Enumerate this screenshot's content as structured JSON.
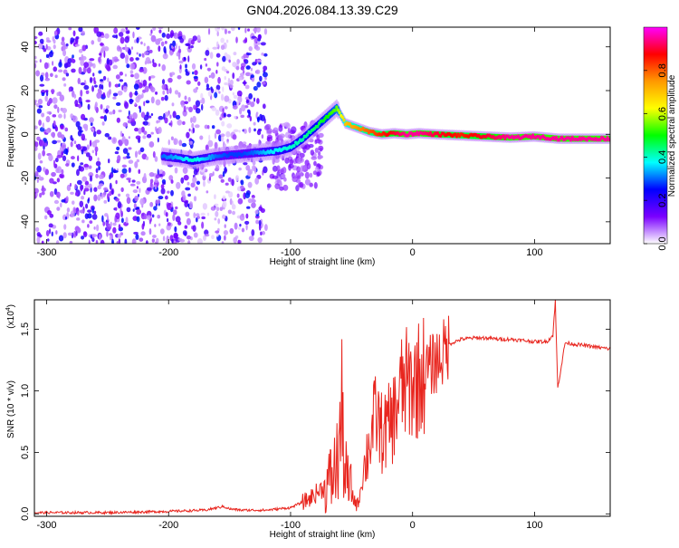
{
  "title": "GN04.2026.084.13.39.C29",
  "chart_data": [
    {
      "type": "heatmap",
      "xlabel": "Height of straight line (km)",
      "ylabel": "Frequency (Hz)",
      "xlim": [
        -310,
        162
      ],
      "ylim": [
        -50,
        49
      ],
      "xticks": [
        -300,
        -200,
        -100,
        0,
        100
      ],
      "yticks": [
        -40,
        -20,
        0,
        20,
        40
      ],
      "colorbar": {
        "label": "Normalized spectral amplitude",
        "range": [
          0.0,
          1.0
        ],
        "ticks": [
          "0.0",
          "0.2",
          "0.4",
          "0.6",
          "0.8"
        ],
        "colors": [
          "#ffffff",
          "#7a00ff",
          "#0000ff",
          "#00ffff",
          "#00ff00",
          "#ffff00",
          "#ff9900",
          "#ff0000",
          "#ff00ff"
        ]
      },
      "ridge": {
        "x": [
          -205,
          -190,
          -180,
          -170,
          -160,
          -150,
          -140,
          -130,
          -120,
          -110,
          -100,
          -90,
          -80,
          -70,
          -62,
          -55,
          -45,
          -35,
          -25,
          -15,
          -5,
          5,
          20,
          40,
          60,
          80,
          100,
          120,
          140,
          162
        ],
        "y": [
          -10,
          -11,
          -12,
          -11,
          -10,
          -9.5,
          -9,
          -8.5,
          -8,
          -7.5,
          -6,
          -2,
          3,
          8,
          12,
          5,
          3,
          1,
          0,
          0.5,
          0,
          0.5,
          0,
          -0.5,
          -1,
          -1.5,
          -1,
          -2,
          -2,
          -2
        ],
        "amplitude": [
          0.3,
          0.35,
          0.4,
          0.35,
          0.3,
          0.28,
          0.28,
          0.3,
          0.35,
          0.38,
          0.4,
          0.42,
          0.45,
          0.5,
          0.55,
          0.7,
          0.75,
          0.8,
          0.85,
          0.9,
          0.95,
          0.95,
          0.9,
          0.85,
          0.9,
          0.95,
          0.95,
          0.95,
          0.95,
          0.95
        ]
      },
      "noise_region": [
        -310,
        -120
      ]
    },
    {
      "type": "line",
      "xlabel": "Height of straight line (km)",
      "ylabel": "SNR (10 * v/v)",
      "y_multiplier": "(x10^4)",
      "y_multiplier_base": "(x10",
      "y_multiplier_exp": "4",
      "y_multiplier_close": ")",
      "xlim": [
        -310,
        162
      ],
      "ylim": [
        -0.02,
        1.74
      ],
      "xticks": [
        -300,
        -200,
        -100,
        0,
        100
      ],
      "yticks": [
        "0.0",
        "0.5",
        "1.0",
        "1.5"
      ],
      "series": [
        {
          "color": "#e8251e",
          "x": [
            -310,
            -250,
            -200,
            -170,
            -155,
            -150,
            -140,
            -120,
            -100,
            -85,
            -75,
            -68,
            -62,
            -58,
            -55,
            -50,
            -45,
            -40,
            -35,
            -30,
            -25,
            -20,
            -15,
            -10,
            -5,
            0,
            5,
            10,
            15,
            20,
            25,
            30,
            35,
            40,
            50,
            60,
            70,
            80,
            90,
            100,
            110,
            115,
            117,
            119,
            125,
            140,
            162
          ],
          "y": [
            0.01,
            0.01,
            0.02,
            0.03,
            0.06,
            0.04,
            0.03,
            0.03,
            0.05,
            0.12,
            0.2,
            0.25,
            0.4,
            0.8,
            0.3,
            0.15,
            0.07,
            0.35,
            0.6,
            0.8,
            0.65,
            0.7,
            0.8,
            1.0,
            1.05,
            1.05,
            1.1,
            1.15,
            1.2,
            1.25,
            1.3,
            1.38,
            1.4,
            1.42,
            1.43,
            1.43,
            1.42,
            1.42,
            1.41,
            1.4,
            1.4,
            1.45,
            1.73,
            1.02,
            1.39,
            1.37,
            1.34
          ]
        }
      ]
    }
  ]
}
